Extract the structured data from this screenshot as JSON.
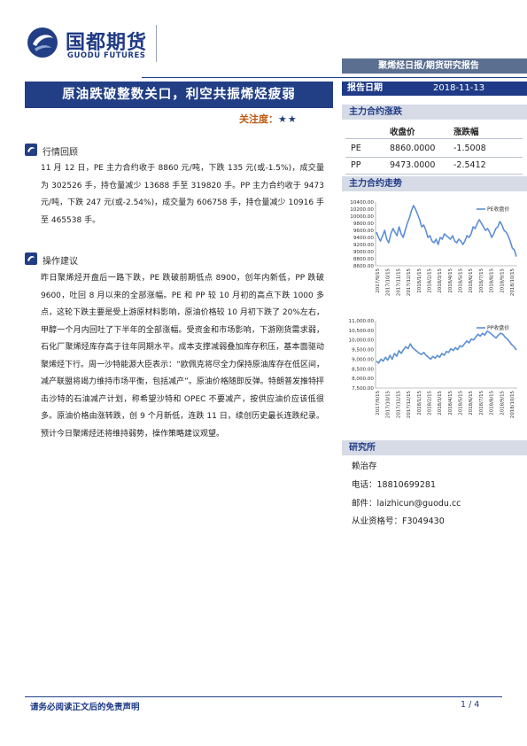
{
  "header": {
    "logo_cn": "国都期货",
    "logo_en": "GUODU FUTURES",
    "report_type": "聚烯烃日报/期货研究报告"
  },
  "title": {
    "main": "原油跌破整数关口，利空共振烯烃疲弱",
    "attention_label": "关注度：",
    "attention_stars": "★★"
  },
  "report_date": {
    "label": "报告日期",
    "value": "2018-11-13"
  },
  "sections": {
    "review": {
      "title": "行情回顾",
      "text": "11 月 12 日，PE 主力合约收于 8860 元/吨，下跌 135 元(或-1.5%)，成交量为 302526 手，持仓量减少 13688 手至 319820 手。PP 主力合约收于 9473 元/吨，下跌 247 元(或-2.54%)，成交量为 606758 手，持仓量减少 10916 手至 465538 手。"
    },
    "advice": {
      "title": "操作建议",
      "text": "昨日聚烯烃开盘后一路下跌，PE 跌破前期低点 8900，创年内新低，PP 跌破 9600，吐回 8 月以来的全部涨幅。PE 和 PP 较 10 月初的高点下跌 1000 多点，这轮下跌主要是受上游原材料影响，原油价格较 10 月初下跌了 20%左右，甲醇一个月内回吐了下半年的全部涨幅。受资金和市场影响，下游刚货需求弱，石化厂聚烯烃库存高于往年同期水平。成本支撑减弱叠加库存积压，基本面驱动聚烯烃下行。周一沙特能源大臣表示：“欧佩克将尽全力保持原油库存在低区间，减产联盟将竭力维持市场平衡，包括减产”。原油价格随即反弹。特朗普发推特抨击沙特的石油减产计划，称希望沙特和 OPEC 不要减产，按供应油价应该低很多。原油价格由涨转跌，创 9 个月新低，连跌 11 日，续创历史最长连跌纪录。预计今日聚烯烃还将维持弱势，操作策略建议观望。"
    }
  },
  "price_table": {
    "title": "主力合约涨跌",
    "col_close": "收盘价",
    "col_change": "涨跌幅",
    "rows": [
      {
        "name": "PE",
        "close": "8860.0000",
        "change": "-1.5008"
      },
      {
        "name": "PP",
        "close": "9473.0000",
        "change": "-2.5412"
      }
    ]
  },
  "trend_title": "主力合约走势",
  "chart_data": [
    {
      "type": "line",
      "title": "",
      "legend": "PE收盘价",
      "legend_position": "top-right",
      "yticks": [
        "10400.00",
        "10200.00",
        "10000.00",
        "9800.00",
        "9600.00",
        "9400.00",
        "9200.00",
        "9000.00",
        "8800.00",
        "8600.00"
      ],
      "ylim": [
        8600,
        10400
      ],
      "xticks": [
        "2017/9/15",
        "2017/10/15",
        "2017/11/15",
        "2017/12/15",
        "2018/1/15",
        "2018/2/15",
        "2018/3/15",
        "2018/4/15",
        "2018/5/15",
        "2018/6/15",
        "2018/7/15",
        "2018/8/15",
        "2018/9/15",
        "2018/10/15"
      ],
      "series": [
        {
          "name": "PE收盘价",
          "color": "#5b8fd6",
          "values": [
            9550,
            9400,
            9300,
            9450,
            9600,
            9350,
            9250,
            9500,
            9650,
            9550,
            9450,
            9700,
            9500,
            9400,
            9600,
            9800,
            9950,
            10150,
            10300,
            10200,
            10050,
            9900,
            9700,
            9750,
            9600,
            9400,
            9450,
            9300,
            9250,
            9350,
            9200,
            9400,
            9350,
            9500,
            9450,
            9400,
            9350,
            9450,
            9300,
            9250,
            9350,
            9300,
            9200,
            9300,
            9450,
            9400,
            9500,
            9700,
            9650,
            9800,
            9900,
            9800,
            9700,
            9600,
            9650,
            9550,
            9400,
            9500,
            9650,
            9700,
            9850,
            9750,
            9600,
            9550,
            9450,
            9300,
            9100,
            9050,
            8860
          ]
        }
      ]
    },
    {
      "type": "line",
      "title": "",
      "legend": "PP收盘价",
      "legend_position": "top-right",
      "yticks": [
        "11,000.00",
        "10,500.00",
        "10,000.00",
        "9,500.00",
        "9,000.00",
        "8,500.00",
        "8,000.00",
        "7,500.00"
      ],
      "ylim": [
        7500,
        11000
      ],
      "xticks": [
        "2017/9/15",
        "2017/10/15",
        "2017/11/15",
        "2017/12/15",
        "2018/1/15",
        "2018/2/15",
        "2018/3/15",
        "2018/4/15",
        "2018/5/15",
        "2018/6/15",
        "2018/7/15",
        "2018/8/15",
        "2018/9/15",
        "2018/10/15"
      ],
      "series": [
        {
          "name": "PP收盘价",
          "color": "#5b8fd6",
          "values": [
            8900,
            8800,
            9000,
            8900,
            9100,
            8950,
            9200,
            9000,
            9300,
            9150,
            9450,
            9300,
            9500,
            9650,
            9550,
            9800,
            9600,
            9500,
            9400,
            9300,
            9250,
            9350,
            9200,
            9100,
            9000,
            9150,
            9050,
            9200,
            9100,
            9300,
            9200,
            9400,
            9350,
            9550,
            9450,
            9600,
            9500,
            9700,
            9650,
            9800,
            9950,
            9850,
            10050,
            10000,
            10150,
            10300,
            10200,
            10350,
            10250,
            10450,
            10400,
            10300,
            10200,
            10100,
            10250,
            10350,
            10300,
            10150,
            10050,
            9900,
            9750,
            9650,
            9473
          ]
        }
      ]
    }
  ],
  "research": {
    "title": "研究所",
    "name": "赖治存",
    "phone": "电话：18810699281",
    "email": "邮件：laizhicun@guodu.cc",
    "license": "从业资格号：F3049430"
  },
  "footer": {
    "disclaimer": "请务必阅读正文后的免责声明",
    "page": "1 / 4"
  }
}
